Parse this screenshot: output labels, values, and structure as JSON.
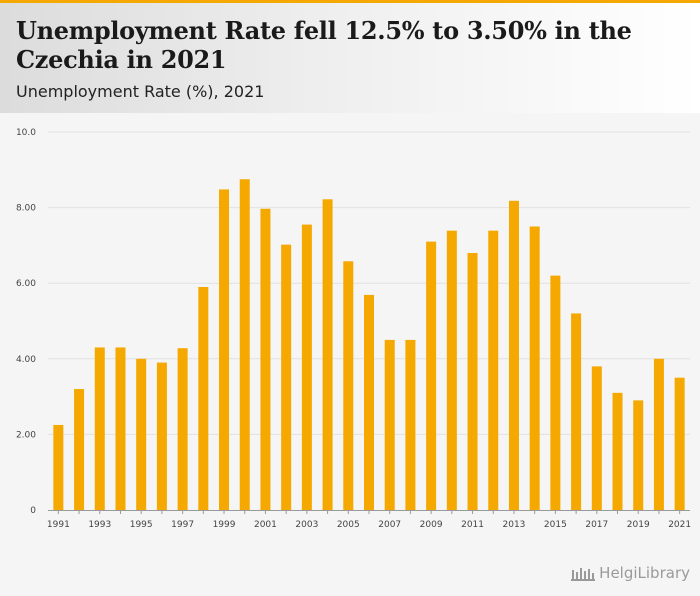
{
  "header": {
    "title": "Unemployment Rate fell 12.5% to 3.50% in the Czechia in 2021",
    "subtitle": "Unemployment Rate (%), 2021"
  },
  "branding": {
    "name": "HelgiLibrary"
  },
  "colors": {
    "bar": "#f5a800",
    "accent": "#f5a800",
    "grid": "#e2e2e2",
    "axis": "#999999"
  },
  "chart_data": {
    "type": "bar",
    "title": "Unemployment Rate fell 12.5% to 3.50% in the Czechia in 2021",
    "subtitle": "Unemployment Rate (%), 2021",
    "xlabel": "",
    "ylabel": "",
    "ylim": [
      0,
      10
    ],
    "yticks": [
      "0",
      "2.00",
      "4.00",
      "6.00",
      "8.00",
      "10.0"
    ],
    "grid": true,
    "categories": [
      "1991",
      "1992",
      "1993",
      "1994",
      "1995",
      "1996",
      "1997",
      "1998",
      "1999",
      "2000",
      "2001",
      "2002",
      "2003",
      "2004",
      "2005",
      "2006",
      "2007",
      "2008",
      "2009",
      "2010",
      "2011",
      "2012",
      "2013",
      "2014",
      "2015",
      "2016",
      "2017",
      "2018",
      "2019",
      "2020",
      "2021"
    ],
    "x_tick_labels": [
      "1991",
      "1993",
      "1995",
      "1997",
      "1999",
      "2001",
      "2003",
      "2005",
      "2007",
      "2009",
      "2011",
      "2013",
      "2015",
      "2017",
      "2019",
      "2021"
    ],
    "values": [
      2.25,
      3.2,
      4.3,
      4.3,
      4.0,
      3.9,
      4.28,
      5.9,
      8.48,
      8.75,
      7.97,
      7.02,
      7.55,
      8.22,
      6.58,
      5.69,
      4.5,
      4.5,
      7.1,
      7.39,
      6.8,
      7.39,
      8.18,
      7.5,
      6.2,
      5.2,
      3.8,
      3.1,
      2.9,
      4.0,
      3.5
    ]
  }
}
